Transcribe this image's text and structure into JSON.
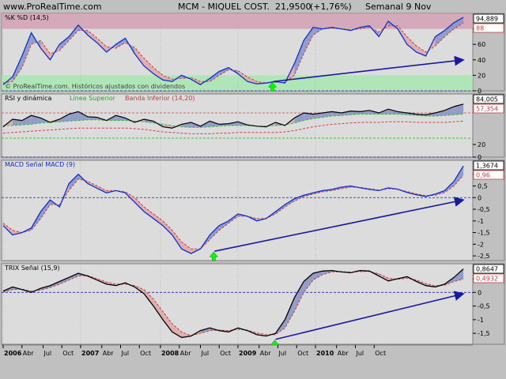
{
  "header": {
    "site": "www.ProRealTime.com",
    "instrument": "MCM - MIQUEL COST.",
    "price": "21,9500",
    "change": "(+1,76%)",
    "period": "Semanal  9 Nov"
  },
  "colors": {
    "background": "#c0c0c0",
    "axis_blue": "#0000ff",
    "arrow": "#1a1aa0",
    "green_arrow": "#00ff00",
    "bear_fill": "#e0a8a8",
    "bull_fill": "#8c96c8",
    "overbought_band": "#d4a0b4",
    "oversold_band": "#a8e8b0"
  },
  "chart_data": [
    {
      "type": "line",
      "panel": "stochastic",
      "title": "%K  %D (14,5)",
      "watermark": "© ProRealTime.com. Históricos ajustados con dividendos",
      "ylim": [
        0,
        100
      ],
      "yticks": [
        "80",
        "60",
        "40",
        "20",
        "0"
      ],
      "last_values": {
        "k": "94,889",
        "d": "88"
      },
      "bands": {
        "overbought": [
          80,
          100
        ],
        "oversold": [
          0,
          20
        ]
      },
      "grid": true,
      "x": [
        0,
        4,
        8,
        12,
        16,
        20,
        24,
        28,
        32,
        36,
        40,
        44,
        48,
        52,
        56,
        60,
        64,
        68,
        72,
        76,
        80,
        84,
        88,
        92,
        96,
        100,
        104,
        108,
        112,
        116,
        120,
        124,
        128,
        132,
        136,
        140,
        144,
        148,
        152,
        156,
        160,
        164,
        168,
        172,
        176,
        180,
        184,
        188,
        192,
        196
      ],
      "series": [
        {
          "values": [
            8,
            18,
            45,
            75,
            55,
            40,
            60,
            70,
            85,
            72,
            62,
            50,
            60,
            68,
            48,
            32,
            22,
            14,
            12,
            20,
            15,
            8,
            16,
            25,
            30,
            22,
            12,
            9,
            10,
            12,
            10,
            35,
            65,
            82,
            80,
            82,
            80,
            78,
            82,
            84,
            70,
            90,
            80,
            60,
            50,
            45,
            70,
            78,
            88,
            95
          ]
        },
        {
          "values": [
            10,
            12,
            30,
            60,
            65,
            48,
            52,
            65,
            78,
            78,
            68,
            57,
            55,
            62,
            56,
            42,
            30,
            20,
            15,
            16,
            17,
            12,
            12,
            20,
            27,
            26,
            18,
            12,
            10,
            11,
            11,
            20,
            48,
            72,
            80,
            81,
            80,
            79,
            80,
            82,
            76,
            84,
            84,
            70,
            58,
            50,
            58,
            70,
            80,
            88
          ]
        }
      ],
      "arrow": {
        "from_x": 115,
        "from_y": 12,
        "to_x": 196,
        "to_y": 40
      }
    },
    {
      "type": "line",
      "panel": "rsi",
      "title": "RSI y dinámica",
      "legend_items": [
        "Línea Superior",
        "Banda Inferior (14,20)"
      ],
      "ylim": [
        0,
        100
      ],
      "yticks": [
        "20",
        "0"
      ],
      "last_values": {
        "rsi": "84,005",
        "upper": "57,354"
      },
      "levels": [
        70,
        30
      ],
      "grid": true,
      "x": [
        0,
        4,
        8,
        12,
        16,
        20,
        24,
        28,
        32,
        36,
        40,
        44,
        48,
        52,
        56,
        60,
        64,
        68,
        72,
        76,
        80,
        84,
        88,
        92,
        96,
        100,
        104,
        108,
        112,
        116,
        120,
        124,
        128,
        132,
        136,
        140,
        144,
        148,
        152,
        156,
        160,
        164,
        168,
        172,
        176,
        180,
        184,
        188,
        192,
        196
      ],
      "series": [
        {
          "values": [
            48,
            60,
            58,
            66,
            62,
            55,
            60,
            68,
            72,
            64,
            63,
            58,
            66,
            62,
            55,
            60,
            57,
            48,
            46,
            52,
            55,
            49,
            57,
            52,
            53,
            56,
            51,
            49,
            48,
            55,
            50,
            62,
            70,
            68,
            70,
            72,
            70,
            73,
            72,
            74,
            70,
            76,
            72,
            70,
            68,
            67,
            70,
            74,
            80,
            84
          ]
        },
        {
          "values": [
            50,
            50,
            51,
            52,
            54,
            55,
            56,
            57,
            58,
            59,
            59,
            58,
            58,
            58,
            57,
            56,
            54,
            52,
            50,
            48,
            47,
            47,
            48,
            49,
            50,
            50,
            50,
            49,
            49,
            50,
            51,
            54,
            58,
            61,
            63,
            65,
            66,
            67,
            68,
            68,
            68,
            68,
            68,
            67,
            66,
            65,
            65,
            66,
            67,
            68
          ]
        },
        {
          "values": [
            38,
            39,
            40,
            41,
            42,
            43,
            44,
            45,
            46,
            46,
            46,
            46,
            46,
            46,
            45,
            44,
            42,
            40,
            39,
            38,
            37,
            37,
            37,
            38,
            38,
            39,
            39,
            39,
            39,
            39,
            40,
            42,
            45,
            48,
            50,
            52,
            53,
            54,
            55,
            55,
            55,
            56,
            56,
            56,
            55,
            55,
            55,
            55,
            56,
            57
          ]
        }
      ]
    },
    {
      "type": "line",
      "panel": "macd",
      "title": "MACD  Señal MACD (9)",
      "ylim": [
        -2.7,
        1.6
      ],
      "yticks": [
        "1",
        "0,5",
        "0",
        "-0,5",
        "-1",
        "-1,5",
        "-2",
        "-2,5"
      ],
      "last_values": {
        "macd": "1,3674",
        "signal": "0,96"
      },
      "grid": true,
      "x": [
        0,
        4,
        8,
        12,
        16,
        20,
        24,
        28,
        32,
        36,
        40,
        44,
        48,
        52,
        56,
        60,
        64,
        68,
        72,
        76,
        80,
        84,
        88,
        92,
        96,
        100,
        104,
        108,
        112,
        116,
        120,
        124,
        128,
        132,
        136,
        140,
        144,
        148,
        152,
        156,
        160,
        164,
        168,
        172,
        176,
        180,
        184,
        188,
        192,
        196
      ],
      "series": [
        {
          "values": [
            -1.2,
            -1.6,
            -1.5,
            -1.3,
            -0.6,
            -0.1,
            -0.4,
            0.6,
            1.0,
            0.6,
            0.4,
            0.2,
            0.3,
            0.2,
            -0.2,
            -0.6,
            -0.9,
            -1.2,
            -1.6,
            -2.2,
            -2.4,
            -2.2,
            -1.6,
            -1.2,
            -1.0,
            -0.7,
            -0.8,
            -1.0,
            -0.9,
            -0.6,
            -0.3,
            -0.05,
            0.1,
            0.2,
            0.3,
            0.35,
            0.45,
            0.5,
            0.42,
            0.35,
            0.3,
            0.42,
            0.36,
            0.22,
            0.12,
            0.05,
            0.15,
            0.3,
            0.7,
            1.36
          ]
        },
        {
          "values": [
            -1.1,
            -1.4,
            -1.5,
            -1.4,
            -0.9,
            -0.3,
            -0.3,
            0.3,
            0.8,
            0.7,
            0.5,
            0.3,
            0.3,
            0.25,
            0.0,
            -0.4,
            -0.7,
            -1.0,
            -1.4,
            -1.9,
            -2.2,
            -2.2,
            -1.8,
            -1.4,
            -1.1,
            -0.8,
            -0.8,
            -0.9,
            -0.9,
            -0.7,
            -0.4,
            -0.15,
            0.05,
            0.15,
            0.25,
            0.3,
            0.38,
            0.45,
            0.44,
            0.38,
            0.32,
            0.38,
            0.36,
            0.26,
            0.16,
            0.08,
            0.1,
            0.22,
            0.5,
            0.96
          ]
        }
      ],
      "arrow": {
        "from_x": 90,
        "from_y": -2.3,
        "to_x": 196,
        "to_y": -0.1
      }
    },
    {
      "type": "line",
      "panel": "trix",
      "title": "TRIX  Señal (15,9)",
      "ylim": [
        -1.9,
        1.05
      ],
      "yticks": [
        "0,5",
        "0",
        "-0,5",
        "-1",
        "-1,5"
      ],
      "last_values": {
        "trix": "0,8647",
        "signal": "0,4932"
      },
      "grid": true,
      "x": [
        0,
        4,
        8,
        12,
        16,
        20,
        24,
        28,
        32,
        36,
        40,
        44,
        48,
        52,
        56,
        60,
        64,
        68,
        72,
        76,
        80,
        84,
        88,
        92,
        96,
        100,
        104,
        108,
        112,
        116,
        120,
        124,
        128,
        132,
        136,
        140,
        144,
        148,
        152,
        156,
        160,
        164,
        168,
        172,
        176,
        180,
        184,
        188,
        192,
        196
      ],
      "series": [
        {
          "values": [
            0.05,
            0.2,
            0.1,
            0.0,
            0.15,
            0.25,
            0.4,
            0.55,
            0.7,
            0.6,
            0.45,
            0.3,
            0.25,
            0.35,
            0.2,
            -0.05,
            -0.5,
            -1.0,
            -1.45,
            -1.65,
            -1.6,
            -1.4,
            -1.3,
            -1.4,
            -1.45,
            -1.3,
            -1.4,
            -1.55,
            -1.6,
            -1.5,
            -1.0,
            -0.2,
            0.4,
            0.7,
            0.78,
            0.8,
            0.75,
            0.72,
            0.8,
            0.78,
            0.6,
            0.42,
            0.5,
            0.58,
            0.4,
            0.25,
            0.2,
            0.3,
            0.55,
            0.86
          ]
        },
        {
          "values": [
            0.0,
            0.1,
            0.12,
            0.05,
            0.08,
            0.18,
            0.3,
            0.45,
            0.6,
            0.62,
            0.5,
            0.38,
            0.3,
            0.3,
            0.25,
            0.1,
            -0.25,
            -0.7,
            -1.15,
            -1.45,
            -1.58,
            -1.5,
            -1.4,
            -1.38,
            -1.4,
            -1.35,
            -1.38,
            -1.48,
            -1.55,
            -1.55,
            -1.3,
            -0.7,
            0.0,
            0.45,
            0.65,
            0.75,
            0.76,
            0.74,
            0.76,
            0.77,
            0.68,
            0.52,
            0.48,
            0.52,
            0.45,
            0.32,
            0.24,
            0.26,
            0.4,
            0.49
          ]
        }
      ],
      "arrow": {
        "from_x": 116,
        "from_y": -1.72,
        "to_x": 196,
        "to_y": -0.05
      }
    }
  ],
  "time_axis": {
    "labels": [
      {
        "x": 0,
        "label": "2006",
        "bold": true
      },
      {
        "x": 8,
        "label": "Abr",
        "bold": false
      },
      {
        "x": 17,
        "label": "Jul",
        "bold": false
      },
      {
        "x": 25,
        "label": "Oct",
        "bold": false
      },
      {
        "x": 33,
        "label": "2007",
        "bold": true
      },
      {
        "x": 42,
        "label": "Abr",
        "bold": false
      },
      {
        "x": 50,
        "label": "Jul",
        "bold": false
      },
      {
        "x": 58,
        "label": "Oct",
        "bold": false
      },
      {
        "x": 67,
        "label": "2008",
        "bold": true
      },
      {
        "x": 75,
        "label": "Abr",
        "bold": false
      },
      {
        "x": 84,
        "label": "Jul",
        "bold": false
      },
      {
        "x": 92,
        "label": "Oct",
        "bold": false
      },
      {
        "x": 100,
        "label": "2009",
        "bold": true
      },
      {
        "x": 109,
        "label": "Abr",
        "bold": false
      },
      {
        "x": 117,
        "label": "Jul",
        "bold": false
      },
      {
        "x": 125,
        "label": "Oct",
        "bold": false
      },
      {
        "x": 133,
        "label": "2010",
        "bold": true
      },
      {
        "x": 142,
        "label": "Abr",
        "bold": false
      },
      {
        "x": 150,
        "label": "Jul",
        "bold": false
      },
      {
        "x": 158,
        "label": "Oct",
        "bold": false
      }
    ]
  }
}
